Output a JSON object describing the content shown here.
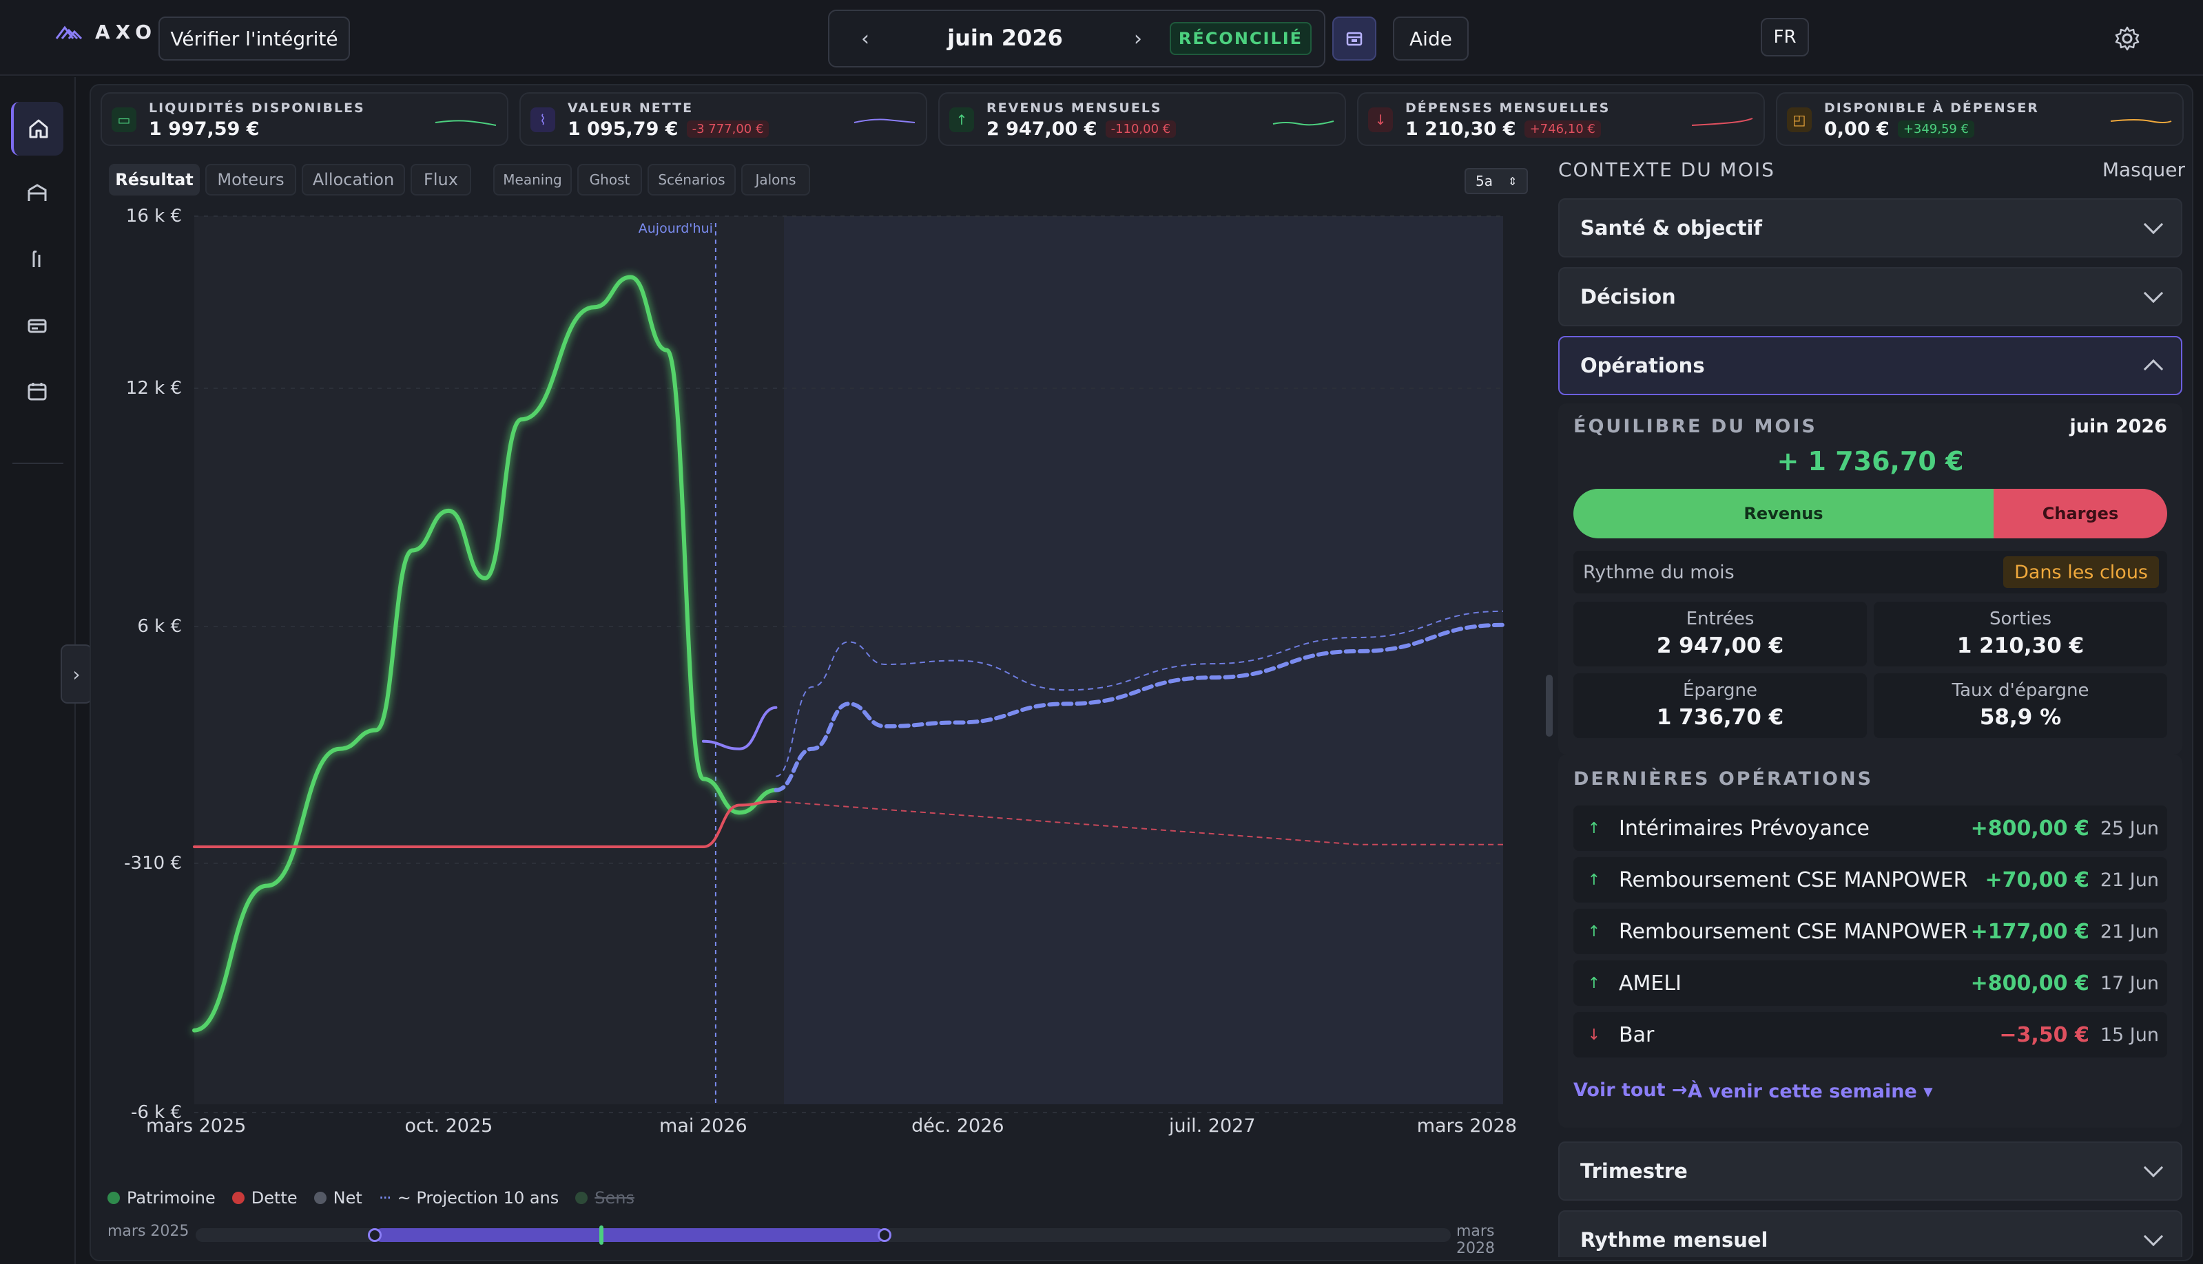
{
  "header": {
    "brand": "AXO",
    "verify_label": "Vérifier l'intégrité",
    "month": "juin 2026",
    "prev_label": "‹",
    "next_label": "›",
    "status": "RÉCONCILIÉ",
    "help_label": "Aide",
    "lang": "FR"
  },
  "sidebar": {
    "items": [
      "home-icon",
      "bank-icon",
      "paths-icon",
      "card-icon",
      "calendar-icon"
    ],
    "collapse_label": "›"
  },
  "kpis": [
    {
      "label": "LIQUIDITÉS DISPONIBLES",
      "value": "1 997,59 €",
      "delta": "",
      "icon": "wallet-icon",
      "color": "#4cd07f"
    },
    {
      "label": "VALEUR NETTE",
      "value": "1 095,79 €",
      "delta": "-3 777,00 €",
      "icon": "chart-icon",
      "color": "#8b7ef7"
    },
    {
      "label": "REVENUS MENSUELS",
      "value": "2 947,00 €",
      "delta": "-110,00 €",
      "icon": "arrow-up-icon",
      "color": "#4cd07f"
    },
    {
      "label": "DÉPENSES MENSUELLES",
      "value": "1 210,30 €",
      "delta": "+746,10 €",
      "icon": "arrow-down-icon",
      "color": "#e0505f"
    },
    {
      "label": "DISPONIBLE À DÉPENSER",
      "value": "0,00 €",
      "delta": "+349,59 €",
      "icon": "bag-icon",
      "color": "#f0a93c"
    }
  ],
  "tabs": [
    "Résultat",
    "Moteurs",
    "Allocation",
    "Flux"
  ],
  "subtabs": [
    "Meaning",
    "Ghost",
    "Scénarios",
    "Jalons"
  ],
  "range": "5a",
  "legend": {
    "patrimoine": "Patrimoine",
    "dette": "Dette",
    "net": "Net",
    "projection": "~ Projection 10 ans",
    "sens": "Sens"
  },
  "timeline": {
    "start": "mars 2025",
    "end": "mars 2028"
  },
  "chart_data": {
    "type": "line",
    "today_label": "Aujourd'hui",
    "today": "juin 2026",
    "y_ticks": [
      "16 k €",
      "12 k €",
      "6 k €",
      "-310 €",
      "-6 k €"
    ],
    "x_ticks": [
      "mars 2025",
      "oct. 2025",
      "mai 2026",
      "déc. 2026",
      "juil. 2027",
      "mars 2028"
    ],
    "series": [
      {
        "name": "Patrimoine",
        "color": "#55d36a",
        "points": [
          [
            "2025-03",
            -4500
          ],
          [
            "2025-05",
            -1200
          ],
          [
            "2025-07",
            2300
          ],
          [
            "2025-08",
            2800
          ],
          [
            "2025-09",
            7500
          ],
          [
            "2025-10",
            8500
          ],
          [
            "2025-11",
            6800
          ],
          [
            "2025-12",
            10800
          ],
          [
            "2026-02",
            13500
          ],
          [
            "2026-03",
            14200
          ],
          [
            "2026-04",
            12500
          ],
          [
            "2026-05",
            1500
          ],
          [
            "2026-06",
            600
          ],
          [
            "2026-07",
            1200
          ]
        ]
      },
      {
        "name": "Dette",
        "color": "#e0505f",
        "points": [
          [
            "2025-03",
            -310
          ],
          [
            "2026-05",
            -310
          ],
          [
            "2026-06",
            800
          ],
          [
            "2026-07",
            900
          ]
        ]
      },
      {
        "name": "Net",
        "color": "#8b7ef7",
        "points": [
          [
            "2026-05",
            2500
          ],
          [
            "2026-06",
            2300
          ],
          [
            "2026-07",
            3400
          ]
        ]
      },
      {
        "name": "~ Projection 10 ans",
        "color": "#7b8cf0",
        "points": [
          [
            "2026-07",
            1200
          ],
          [
            "2026-08",
            2300
          ],
          [
            "2026-09",
            3500
          ],
          [
            "2026-10",
            2900
          ],
          [
            "2026-12",
            3000
          ],
          [
            "2027-03",
            3500
          ],
          [
            "2027-07",
            4200
          ],
          [
            "2027-11",
            4900
          ],
          [
            "2028-03",
            5600
          ]
        ]
      }
    ]
  },
  "context": {
    "title": "CONTEXTE DU MOIS",
    "hide": "Masquer",
    "sections": [
      "Santé & objectif",
      "Décision",
      "Opérations",
      "Trimestre",
      "Rythme mensuel"
    ],
    "balance": {
      "title": "ÉQUILIBRE DU MOIS",
      "month": "juin 2026",
      "value": "+ 1 736,70 €",
      "income_label": "Revenus",
      "expense_label": "Charges",
      "income_share": 0.71
    },
    "rythme": {
      "label": "Rythme du mois",
      "badge": "Dans les clous"
    },
    "stats": [
      {
        "label": "Entrées",
        "value": "2 947,00 €"
      },
      {
        "label": "Sorties",
        "value": "1 210,30 €"
      },
      {
        "label": "Épargne",
        "value": "1 736,70 €"
      },
      {
        "label": "Taux d'épargne",
        "value": "58,9 %"
      }
    ],
    "recent": {
      "title": "DERNIÈRES OPÉRATIONS",
      "items": [
        {
          "name": "Intérimaires Prévoyance",
          "amount": "+800,00 €",
          "date": "25 Jun",
          "sign": "pos"
        },
        {
          "name": "Remboursement CSE MANPOWER",
          "amount": "+70,00 €",
          "date": "21 Jun",
          "sign": "pos"
        },
        {
          "name": "Remboursement CSE MANPOWER",
          "amount": "+177,00 €",
          "date": "21 Jun",
          "sign": "pos"
        },
        {
          "name": "AMELI",
          "amount": "+800,00 €",
          "date": "17 Jun",
          "sign": "pos"
        },
        {
          "name": "Bar",
          "amount": "−3,50 €",
          "date": "15 Jun",
          "sign": "neg"
        }
      ],
      "see_all": "Voir tout →",
      "upcoming": "À venir cette semaine ▾"
    }
  }
}
